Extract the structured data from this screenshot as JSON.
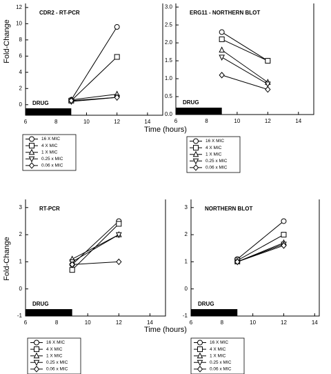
{
  "chart_data": [
    {
      "type": "line",
      "title": "CDR2  -  RT-PCR",
      "ylabel": "Fold-Change",
      "xlabel": "Time (hours)",
      "x": [
        9,
        12
      ],
      "xlim": [
        6,
        15
      ],
      "xticks": [
        6,
        8,
        10,
        12,
        14
      ],
      "ylim": [
        -1.3,
        12.5
      ],
      "yticks": [
        0,
        2,
        4,
        6,
        8,
        10,
        12
      ],
      "drug_label": "DRUG",
      "drug_span": [
        6,
        9
      ],
      "series": [
        {
          "name": "16 X MIC",
          "marker": "circle",
          "color": "#000000",
          "values": [
            0.6,
            9.6
          ]
        },
        {
          "name": "4 X MIC",
          "marker": "square",
          "color": "#000000",
          "values": [
            0.5,
            5.9
          ]
        },
        {
          "name": "1 X MIC",
          "marker": "triangle-up",
          "color": "#000000",
          "values": [
            0.6,
            1.3
          ]
        },
        {
          "name": "0.25 x MIC",
          "marker": "triangle-down",
          "color": "#000000",
          "values": [
            0.4,
            0.9
          ]
        },
        {
          "name": "0.06 x MIC",
          "marker": "diamond",
          "color": "#000000",
          "values": [
            0.5,
            0.9
          ]
        }
      ]
    },
    {
      "type": "line",
      "title": "ERG11  -  NORTHERN BLOT",
      "x": [
        9,
        12
      ],
      "xlim": [
        6,
        15
      ],
      "xticks": [
        6,
        8,
        10,
        12,
        14
      ],
      "ylim": [
        0,
        3.1
      ],
      "yticks": [
        {
          "value": 0,
          "label": "0.0"
        },
        0.5,
        {
          "value": 1,
          "label": "1.0"
        },
        1.5,
        {
          "value": 2,
          "label": "2.0"
        },
        2.5,
        {
          "value": 3,
          "label": "3.0"
        }
      ],
      "drug_label": "DRUG",
      "drug_span": [
        6,
        9
      ],
      "series": [
        {
          "name": "16 X MIC",
          "marker": "circle",
          "color": "#000000",
          "values": [
            2.3,
            1.5
          ]
        },
        {
          "name": "4 X MIC",
          "marker": "square",
          "color": "#000000",
          "values": [
            2.1,
            1.5
          ]
        },
        {
          "name": "1 X MIC",
          "marker": "triangle-up",
          "color": "#000000",
          "values": [
            1.8,
            0.9
          ]
        },
        {
          "name": "0.25 x MIC",
          "marker": "triangle-down",
          "color": "#000000",
          "values": [
            1.6,
            0.85
          ]
        },
        {
          "name": "0.06 x MIC",
          "marker": "diamond",
          "color": "#000000",
          "values": [
            1.1,
            0.7
          ]
        }
      ]
    },
    {
      "type": "line",
      "title": "RT-PCR",
      "ylabel": "Fold-Change",
      "xlabel": "Time (hours)",
      "x": [
        9,
        12
      ],
      "xlim": [
        6,
        15
      ],
      "xticks": [
        6,
        8,
        10,
        12,
        14
      ],
      "ylim": [
        -1,
        3.3
      ],
      "yticks": [
        -1,
        0,
        1,
        2,
        3
      ],
      "drug_label": "DRUG",
      "drug_span": [
        6,
        9
      ],
      "series": [
        {
          "name": "16 X MIC",
          "marker": "circle",
          "color": "#000000",
          "values": [
            0.9,
            2.5
          ]
        },
        {
          "name": "4 X MIC",
          "marker": "square",
          "color": "#000000",
          "values": [
            0.7,
            2.4
          ]
        },
        {
          "name": "1 X MIC",
          "marker": "triangle-up",
          "color": "#000000",
          "values": [
            1.1,
            2.0
          ]
        },
        {
          "name": "0.25 x MIC",
          "marker": "triangle-down",
          "color": "#000000",
          "values": [
            1.0,
            2.0
          ]
        },
        {
          "name": "0.06 x MIC",
          "marker": "diamond",
          "color": "#000000",
          "values": [
            0.9,
            1.0
          ]
        }
      ]
    },
    {
      "type": "line",
      "title": "NORTHERN BLOT",
      "x": [
        9,
        12
      ],
      "xlim": [
        6,
        14.3
      ],
      "xticks": [
        6,
        8,
        10,
        12,
        14
      ],
      "ylim": [
        -1,
        3.3
      ],
      "yticks": [
        -1,
        0,
        1,
        2,
        3
      ],
      "drug_label": "DRUG",
      "drug_span": [
        6,
        9
      ],
      "series": [
        {
          "name": "16 X MIC",
          "marker": "circle",
          "color": "#000000",
          "values": [
            1.1,
            2.5
          ]
        },
        {
          "name": "4 X MIC",
          "marker": "square",
          "color": "#000000",
          "values": [
            1.05,
            2.0
          ]
        },
        {
          "name": "1 X MIC",
          "marker": "triangle-up",
          "color": "#000000",
          "values": [
            1.0,
            1.7
          ]
        },
        {
          "name": "0.25 x MIC",
          "marker": "triangle-down",
          "color": "#000000",
          "values": [
            1.0,
            1.65
          ]
        },
        {
          "name": "0.06 x MIC",
          "marker": "diamond",
          "color": "#000000",
          "values": [
            1.0,
            1.6
          ]
        }
      ]
    }
  ]
}
